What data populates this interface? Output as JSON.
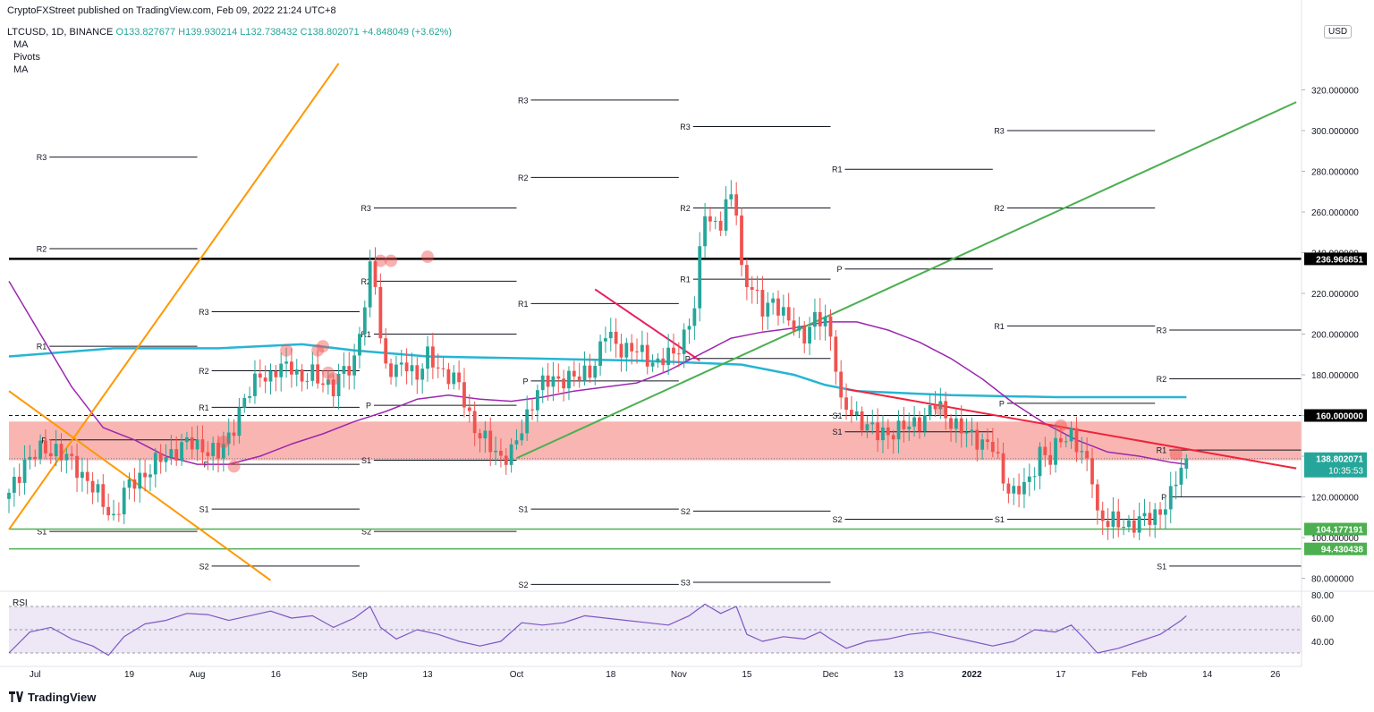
{
  "header": {
    "publisher": "CryptoFXStreet published on TradingView.com, Feb 09, 2022 21:24 UTC+8",
    "symbol": "LTCUSD, 1D, BINANCE",
    "open": "O133.827677",
    "high": "H139.930214",
    "low": "L132.738432",
    "close": "C138.802071",
    "change": "+4.848049 (+3.62%)",
    "indicators": [
      "MA",
      "Pivots",
      "MA"
    ],
    "currency": "USD"
  },
  "brand": "TradingView",
  "colors": {
    "up": "#26a69a",
    "down": "#ef5350",
    "ma_short": "#9c27b0",
    "ma_long": "#26b5d4",
    "zone": "#f8a8a3",
    "green_line": "#4caf50",
    "orange_line": "#ff9800",
    "red_line": "#ef233c",
    "magenta_line": "#e91e63",
    "rsi": "#7e57c2",
    "rsi_band": "#ede7f6"
  },
  "chart_data": {
    "type": "candlestick",
    "y_axis": {
      "min": 75,
      "max": 325,
      "ticks": [
        80,
        100,
        120,
        140,
        160,
        180,
        200,
        220,
        240,
        260,
        280,
        300,
        320
      ],
      "tick_labels": [
        "80.000000",
        "100.000000",
        "120.000000",
        "140.000000",
        "160.000000",
        "180.000000",
        "200.000000",
        "220.000000",
        "240.000000",
        "260.000000",
        "280.000000",
        "300.000000",
        "320.000000"
      ]
    },
    "x_axis": {
      "labels": [
        "Jul",
        "19",
        "Aug",
        "16",
        "Sep",
        "13",
        "Oct",
        "18",
        "Nov",
        "15",
        "Dec",
        "13",
        "2022",
        "17",
        "Feb",
        "14",
        "26"
      ],
      "positions_days": [
        5,
        23,
        36,
        51,
        67,
        80,
        97,
        115,
        128,
        141,
        157,
        170,
        184,
        201,
        216,
        229,
        242
      ]
    },
    "candle_anchors": [
      [
        0,
        120
      ],
      [
        3,
        138
      ],
      [
        6,
        142
      ],
      [
        9,
        144
      ],
      [
        12,
        136
      ],
      [
        15,
        129
      ],
      [
        18,
        116
      ],
      [
        20,
        110
      ],
      [
        22,
        122
      ],
      [
        25,
        130
      ],
      [
        28,
        136
      ],
      [
        31,
        142
      ],
      [
        34,
        146
      ],
      [
        37,
        145
      ],
      [
        40,
        140
      ],
      [
        42,
        150
      ],
      [
        44,
        162
      ],
      [
        46,
        171
      ],
      [
        48,
        182
      ],
      [
        50,
        178
      ],
      [
        52,
        183
      ],
      [
        54,
        186
      ],
      [
        56,
        176
      ],
      [
        58,
        180
      ],
      [
        60,
        178
      ],
      [
        62,
        172
      ],
      [
        64,
        182
      ],
      [
        66,
        188
      ],
      [
        68,
        214
      ],
      [
        69,
        230
      ],
      [
        70,
        226
      ],
      [
        71,
        200
      ],
      [
        72,
        184
      ],
      [
        74,
        181
      ],
      [
        76,
        186
      ],
      [
        78,
        180
      ],
      [
        80,
        188
      ],
      [
        82,
        184
      ],
      [
        84,
        180
      ],
      [
        86,
        174
      ],
      [
        88,
        160
      ],
      [
        90,
        150
      ],
      [
        92,
        144
      ],
      [
        94,
        140
      ],
      [
        96,
        142
      ],
      [
        97,
        146
      ],
      [
        99,
        160
      ],
      [
        101,
        174
      ],
      [
        103,
        176
      ],
      [
        106,
        179
      ],
      [
        109,
        178
      ],
      [
        112,
        186
      ],
      [
        114,
        200
      ],
      [
        116,
        195
      ],
      [
        118,
        193
      ],
      [
        121,
        190
      ],
      [
        124,
        186
      ],
      [
        127,
        190
      ],
      [
        129,
        200
      ],
      [
        131,
        212
      ],
      [
        132,
        238
      ],
      [
        133,
        262
      ],
      [
        134,
        256
      ],
      [
        136,
        254
      ],
      [
        138,
        268
      ],
      [
        139,
        262
      ],
      [
        140,
        232
      ],
      [
        142,
        221
      ],
      [
        144,
        212
      ],
      [
        146,
        218
      ],
      [
        148,
        208
      ],
      [
        150,
        204
      ],
      [
        152,
        200
      ],
      [
        154,
        206
      ],
      [
        156,
        207
      ],
      [
        157,
        200
      ],
      [
        158,
        186
      ],
      [
        159,
        164
      ],
      [
        161,
        161
      ],
      [
        163,
        158
      ],
      [
        166,
        150
      ],
      [
        169,
        153
      ],
      [
        172,
        154
      ],
      [
        175,
        160
      ],
      [
        177,
        165
      ],
      [
        180,
        158
      ],
      [
        183,
        150
      ],
      [
        186,
        148
      ],
      [
        188,
        144
      ],
      [
        190,
        128
      ],
      [
        192,
        123
      ],
      [
        195,
        126
      ],
      [
        197,
        144
      ],
      [
        199,
        138
      ],
      [
        201,
        148
      ],
      [
        203,
        152
      ],
      [
        205,
        140
      ],
      [
        207,
        130
      ],
      [
        208,
        112
      ],
      [
        210,
        108
      ],
      [
        212,
        106
      ],
      [
        214,
        107
      ],
      [
        216,
        108
      ],
      [
        218,
        109
      ],
      [
        220,
        114
      ],
      [
        222,
        120
      ],
      [
        224,
        134
      ],
      [
        225,
        138.8
      ]
    ],
    "key_levels": [
      {
        "value": 236.966851,
        "label": "236.966851"
      },
      {
        "value": 160.0,
        "label": "160.000000"
      },
      {
        "value": 104.177191,
        "label": "104.177191"
      },
      {
        "value": 94.430438,
        "label": "94.430438"
      }
    ],
    "last_price": {
      "value": 138.802071,
      "label": "138.802071",
      "countdown": "10:35:53"
    },
    "zone": {
      "from": 138,
      "to": 157
    },
    "pivots": [
      {
        "label": "R3",
        "value": 287,
        "d0": 5,
        "d1": 36
      },
      {
        "label": "R2",
        "value": 242,
        "d0": 5,
        "d1": 36
      },
      {
        "label": "R1",
        "value": 194,
        "d0": 5,
        "d1": 36
      },
      {
        "label": "P",
        "value": 148,
        "d0": 5,
        "d1": 36
      },
      {
        "label": "S1",
        "value": 103,
        "d0": 5,
        "d1": 36
      },
      {
        "label": "R3",
        "value": 211,
        "d0": 36,
        "d1": 67
      },
      {
        "label": "R2",
        "value": 182,
        "d0": 36,
        "d1": 67
      },
      {
        "label": "R1",
        "value": 164,
        "d0": 36,
        "d1": 67
      },
      {
        "label": "P",
        "value": 136,
        "d0": 36,
        "d1": 67
      },
      {
        "label": "S1",
        "value": 114,
        "d0": 36,
        "d1": 67
      },
      {
        "label": "S2",
        "value": 86,
        "d0": 36,
        "d1": 67
      },
      {
        "label": "R3",
        "value": 262,
        "d0": 67,
        "d1": 97
      },
      {
        "label": "R2",
        "value": 226,
        "d0": 67,
        "d1": 97
      },
      {
        "label": "R1",
        "value": 200,
        "d0": 67,
        "d1": 97
      },
      {
        "label": "P",
        "value": 165,
        "d0": 67,
        "d1": 97
      },
      {
        "label": "S1",
        "value": 138,
        "d0": 67,
        "d1": 97
      },
      {
        "label": "S2",
        "value": 103,
        "d0": 67,
        "d1": 97
      },
      {
        "label": "R3",
        "value": 315,
        "d0": 97,
        "d1": 128
      },
      {
        "label": "R2",
        "value": 277,
        "d0": 97,
        "d1": 128
      },
      {
        "label": "R1",
        "value": 215,
        "d0": 97,
        "d1": 128
      },
      {
        "label": "P",
        "value": 177,
        "d0": 97,
        "d1": 128
      },
      {
        "label": "S1",
        "value": 114,
        "d0": 97,
        "d1": 128
      },
      {
        "label": "S2",
        "value": 77,
        "d0": 97,
        "d1": 128
      },
      {
        "label": "R3",
        "value": 302,
        "d0": 128,
        "d1": 157
      },
      {
        "label": "R2",
        "value": 262,
        "d0": 128,
        "d1": 157
      },
      {
        "label": "R1",
        "value": 227,
        "d0": 128,
        "d1": 157
      },
      {
        "label": "P",
        "value": 188,
        "d0": 128,
        "d1": 157
      },
      {
        "label": "S2",
        "value": 113,
        "d0": 128,
        "d1": 157
      },
      {
        "label": "S3",
        "value": 78,
        "d0": 128,
        "d1": 157
      },
      {
        "label": "R1",
        "value": 281,
        "d0": 157,
        "d1": 188
      },
      {
        "label": "P",
        "value": 232,
        "d0": 157,
        "d1": 188
      },
      {
        "label": "S1",
        "value": 160,
        "d0": 157,
        "d1": 188
      },
      {
        "label": "S1",
        "value": 152,
        "d0": 157,
        "d1": 188
      },
      {
        "label": "S2",
        "value": 109,
        "d0": 157,
        "d1": 188
      },
      {
        "label": "R3",
        "value": 300,
        "d0": 188,
        "d1": 219
      },
      {
        "label": "R2",
        "value": 262,
        "d0": 188,
        "d1": 219
      },
      {
        "label": "R1",
        "value": 204,
        "d0": 188,
        "d1": 219
      },
      {
        "label": "P",
        "value": 166,
        "d0": 188,
        "d1": 219
      },
      {
        "label": "S1",
        "value": 109,
        "d0": 188,
        "d1": 219
      },
      {
        "label": "R3",
        "value": 202,
        "d0": 219,
        "d1": 247
      },
      {
        "label": "R2",
        "value": 178,
        "d0": 219,
        "d1": 247
      },
      {
        "label": "R1",
        "value": 143,
        "d0": 219,
        "d1": 247
      },
      {
        "label": "P",
        "value": 120,
        "d0": 219,
        "d1": 247
      },
      {
        "label": "S1",
        "value": 86,
        "d0": 219,
        "d1": 247
      }
    ],
    "trendlines": [
      {
        "name": "orange-rising-line",
        "points": [
          [
            0,
            104
          ],
          [
            63,
            333
          ]
        ],
        "color": "orange_line"
      },
      {
        "name": "orange-falling-line",
        "points": [
          [
            0,
            172
          ],
          [
            50,
            79
          ]
        ],
        "color": "orange_line"
      },
      {
        "name": "green-uptrend-line",
        "points": [
          [
            97,
            139
          ],
          [
            246,
            314
          ]
        ],
        "color": "green_line"
      },
      {
        "name": "red-downtrend-line",
        "points": [
          [
            160,
            173
          ],
          [
            246,
            134
          ]
        ],
        "color": "red_line"
      },
      {
        "name": "magenta-wedge-line",
        "points": [
          [
            112,
            222
          ],
          [
            132,
            187
          ]
        ],
        "color": "magenta_line"
      }
    ],
    "touch_markers": [
      [
        41,
        147
      ],
      [
        43,
        135
      ],
      [
        53,
        192
      ],
      [
        59,
        192
      ],
      [
        61,
        181
      ],
      [
        60,
        194
      ],
      [
        62,
        178
      ],
      [
        71,
        236
      ],
      [
        73,
        236
      ],
      [
        80,
        238
      ],
      [
        178,
        163
      ],
      [
        201,
        155
      ],
      [
        223,
        141
      ]
    ],
    "ma_short": [
      [
        0,
        226
      ],
      [
        6,
        200
      ],
      [
        12,
        174
      ],
      [
        18,
        154
      ],
      [
        24,
        148
      ],
      [
        30,
        140
      ],
      [
        36,
        136
      ],
      [
        42,
        136
      ],
      [
        48,
        140
      ],
      [
        54,
        146
      ],
      [
        60,
        151
      ],
      [
        66,
        157
      ],
      [
        72,
        162
      ],
      [
        78,
        168
      ],
      [
        84,
        170
      ],
      [
        90,
        168
      ],
      [
        96,
        167
      ],
      [
        102,
        169
      ],
      [
        108,
        172
      ],
      [
        114,
        174
      ],
      [
        120,
        176
      ],
      [
        126,
        182
      ],
      [
        132,
        190
      ],
      [
        138,
        198
      ],
      [
        144,
        201
      ],
      [
        150,
        203
      ],
      [
        156,
        206
      ],
      [
        162,
        206
      ],
      [
        168,
        202
      ],
      [
        174,
        196
      ],
      [
        180,
        188
      ],
      [
        186,
        178
      ],
      [
        192,
        166
      ],
      [
        198,
        156
      ],
      [
        204,
        148
      ],
      [
        210,
        142
      ],
      [
        216,
        140
      ],
      [
        222,
        137
      ],
      [
        225,
        136
      ]
    ],
    "ma_long": [
      [
        0,
        189
      ],
      [
        20,
        193
      ],
      [
        40,
        193
      ],
      [
        56,
        195
      ],
      [
        66,
        192
      ],
      [
        80,
        189
      ],
      [
        100,
        188
      ],
      [
        120,
        187
      ],
      [
        140,
        185
      ],
      [
        150,
        180
      ],
      [
        156,
        175
      ],
      [
        162,
        172
      ],
      [
        180,
        170
      ],
      [
        200,
        169
      ],
      [
        215,
        169
      ],
      [
        225,
        169
      ]
    ],
    "rsi": {
      "label": "RSI",
      "ticks": [
        40,
        60,
        80
      ],
      "tick_labels": [
        "40.00",
        "60.00",
        "80.00"
      ],
      "band": [
        30,
        70
      ],
      "values": [
        [
          0,
          30
        ],
        [
          4,
          48
        ],
        [
          8,
          52
        ],
        [
          12,
          42
        ],
        [
          16,
          36
        ],
        [
          19,
          28
        ],
        [
          22,
          44
        ],
        [
          26,
          55
        ],
        [
          30,
          58
        ],
        [
          34,
          64
        ],
        [
          38,
          63
        ],
        [
          42,
          58
        ],
        [
          46,
          62
        ],
        [
          50,
          66
        ],
        [
          54,
          60
        ],
        [
          58,
          62
        ],
        [
          62,
          52
        ],
        [
          66,
          60
        ],
        [
          69,
          70
        ],
        [
          71,
          52
        ],
        [
          74,
          42
        ],
        [
          78,
          50
        ],
        [
          82,
          46
        ],
        [
          86,
          40
        ],
        [
          90,
          36
        ],
        [
          94,
          40
        ],
        [
          98,
          56
        ],
        [
          102,
          54
        ],
        [
          106,
          56
        ],
        [
          110,
          62
        ],
        [
          114,
          60
        ],
        [
          118,
          58
        ],
        [
          122,
          56
        ],
        [
          126,
          54
        ],
        [
          130,
          62
        ],
        [
          133,
          72
        ],
        [
          136,
          64
        ],
        [
          139,
          70
        ],
        [
          141,
          46
        ],
        [
          144,
          40
        ],
        [
          148,
          44
        ],
        [
          152,
          42
        ],
        [
          155,
          48
        ],
        [
          157,
          42
        ],
        [
          160,
          34
        ],
        [
          164,
          40
        ],
        [
          168,
          42
        ],
        [
          172,
          46
        ],
        [
          176,
          48
        ],
        [
          180,
          44
        ],
        [
          184,
          40
        ],
        [
          188,
          36
        ],
        [
          192,
          40
        ],
        [
          196,
          50
        ],
        [
          200,
          48
        ],
        [
          203,
          54
        ],
        [
          206,
          40
        ],
        [
          208,
          30
        ],
        [
          212,
          34
        ],
        [
          216,
          40
        ],
        [
          220,
          46
        ],
        [
          224,
          58
        ],
        [
          225,
          62
        ]
      ]
    }
  }
}
